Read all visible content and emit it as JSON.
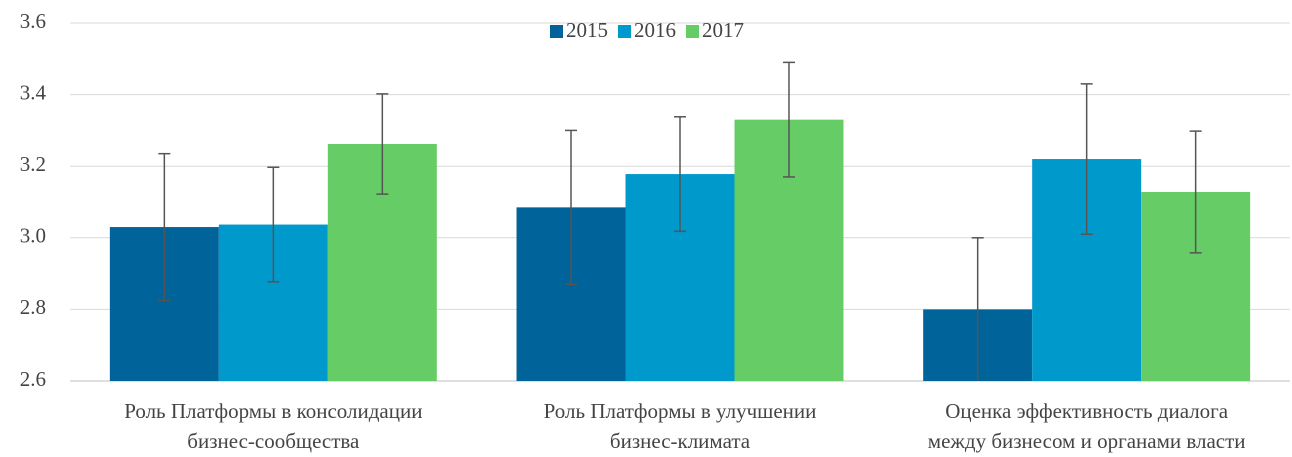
{
  "chart_data": {
    "type": "bar",
    "categories": [
      [
        "Роль Платформы в консолидации",
        "бизнес-сообщества"
      ],
      [
        "Роль Платформы в улучшении",
        "бизнес-климата"
      ],
      [
        "Оценка эффективность диалога",
        "между бизнесом и органами власти"
      ]
    ],
    "series": [
      {
        "name": "2015",
        "color": "#00639a",
        "values": [
          3.03,
          3.085,
          2.8
        ],
        "errors": [
          0.205,
          0.215,
          0.2
        ]
      },
      {
        "name": "2016",
        "color": "#0099cc",
        "values": [
          3.037,
          3.178,
          3.22
        ],
        "errors": [
          0.16,
          0.16,
          0.21
        ]
      },
      {
        "name": "2017",
        "color": "#66cc66",
        "values": [
          3.262,
          3.33,
          3.128
        ],
        "errors": [
          0.14,
          0.16,
          0.17
        ]
      }
    ],
    "ylim": [
      2.6,
      3.6
    ],
    "yticks": [
      2.6,
      2.8,
      {
        "value": 3,
        "label": "3.0"
      },
      3.2,
      3.4,
      3.6
    ],
    "grid": true,
    "legend": "top"
  }
}
